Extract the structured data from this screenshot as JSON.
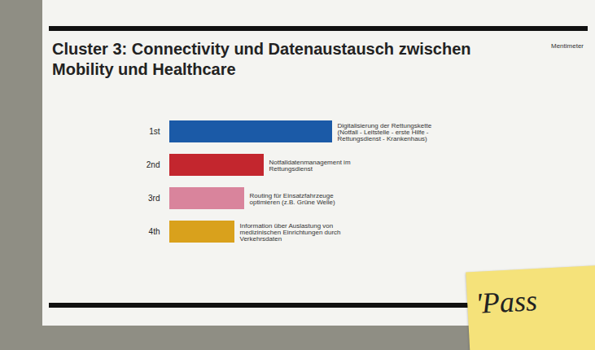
{
  "chart_data": {
    "type": "bar",
    "orientation": "horizontal",
    "title": "Cluster 3: Connectivity und Datenaustausch zwischen Mobility und Healthcare",
    "brand": "Mentimeter",
    "annotation": "'Pass",
    "categories": [
      "1st",
      "2nd",
      "3rd",
      "4th"
    ],
    "bar_labels": [
      "Digitalisierung der Rettungskette (Notfall - Leitstelle - erste Hilfe - Rettungsdienst - Krankenhaus)",
      "Notfalldatenmanagement im Rettungsdienst",
      "Routing für Einsatzfahrzeuge optimieren (z.B. Grüne Welle)",
      "Information über Auslastung von medizinischen Einrichtungen durch Verkehrsdaten"
    ],
    "values": [
      100,
      58,
      46,
      40
    ],
    "colors": [
      "#1b5aa7",
      "#c3262e",
      "#d9849c",
      "#d9a11c"
    ],
    "xlim": [
      0,
      100
    ],
    "tick_labels": "y",
    "grid": false
  }
}
